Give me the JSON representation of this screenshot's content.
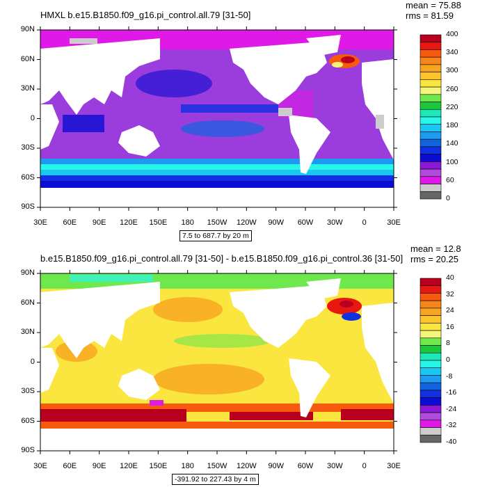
{
  "panels": [
    {
      "title": "HMXL b.e15.B1850.f09_g16.pi_control.all.79 [31-50]",
      "stats": [
        "mean = 75.88",
        "rms = 81.59"
      ],
      "range_label": "7.5 to 687.7 by 20 m",
      "lat_labels": [
        "90N",
        "60N",
        "30N",
        "0",
        "30S",
        "60S",
        "90S"
      ],
      "lon_labels": [
        "30E",
        "60E",
        "90E",
        "120E",
        "150E",
        "180",
        "150W",
        "120W",
        "90W",
        "60W",
        "30W",
        "0",
        "30E"
      ],
      "colorbar_labels": [
        "400",
        "340",
        "300",
        "260",
        "220",
        "180",
        "140",
        "100",
        "60",
        "0"
      ],
      "colorbar_colors": [
        "#b8001e",
        "#e8170f",
        "#f65a0e",
        "#f7861a",
        "#f9a41f",
        "#fcc52d",
        "#fbe640",
        "#f4f57a",
        "#6ee84d",
        "#1bc83a",
        "#1ce9b7",
        "#28f6e9",
        "#19c8f2",
        "#1c9bf1",
        "#1164df",
        "#1030e2",
        "#0c0cd2",
        "#8c19d8",
        "#b04bdd",
        "#e01ae6",
        "#cccccc",
        "#666666"
      ]
    },
    {
      "title": "b.e15.B1850.f09_g16.pi_control.all.79 [31-50] - b.e15.B1850.f09_g16.pi_control.36 [31-50]",
      "stats": [
        "mean = 12.8",
        "rms = 20.25"
      ],
      "range_label": "-391.92 to 227.43 by 4 m",
      "lat_labels": [
        "90N",
        "60N",
        "30N",
        "0",
        "30S",
        "60S",
        "90S"
      ],
      "lon_labels": [
        "30E",
        "60E",
        "90E",
        "120E",
        "150E",
        "180",
        "150W",
        "120W",
        "90W",
        "60W",
        "30W",
        "0",
        "30E"
      ],
      "colorbar_labels": [
        "40",
        "32",
        "24",
        "16",
        "8",
        "0",
        "-8",
        "-16",
        "-24",
        "-32",
        "-40"
      ],
      "colorbar_colors": [
        "#b8001e",
        "#e8170f",
        "#f65a0e",
        "#f7861a",
        "#f9a41f",
        "#fcc52d",
        "#fbe640",
        "#f4f57a",
        "#6ee84d",
        "#1bc83a",
        "#1ce9b7",
        "#28f6e9",
        "#19c8f2",
        "#1c9bf1",
        "#1164df",
        "#1030e2",
        "#0c0cd2",
        "#8c19d8",
        "#b04bdd",
        "#e01ae6",
        "#cccccc",
        "#666666"
      ]
    }
  ]
}
